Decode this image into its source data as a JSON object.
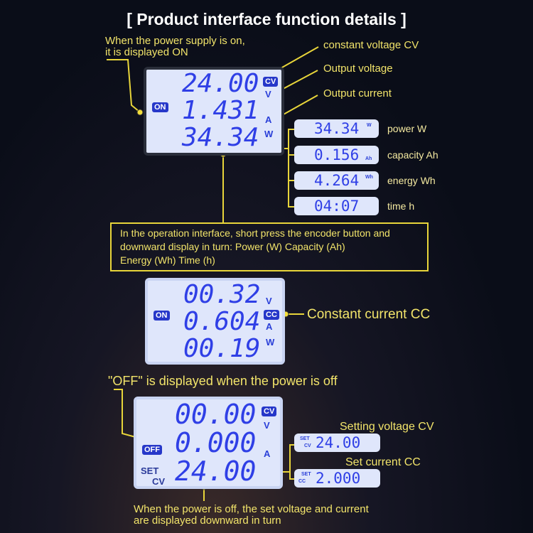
{
  "title": "[ Product interface function details ]",
  "on_note": [
    "When the power supply is on,",
    "it is displayed ON"
  ],
  "callouts": {
    "cv": "constant voltage CV",
    "voltage": "Output voltage",
    "current": "Output current"
  },
  "display_on": {
    "voltage": "24.00",
    "current": "1.431",
    "power": "34.34",
    "mode_badge": "CV",
    "state_badge": "ON",
    "units": [
      "V",
      "A",
      "W"
    ]
  },
  "sub_displays": [
    {
      "value": "34.34",
      "unit": "W",
      "label": "power  W"
    },
    {
      "value": "0.156",
      "unit": "Ah",
      "label": "capacity  Ah"
    },
    {
      "value": "4.264",
      "unit": "Wh",
      "label": "energy  Wh"
    },
    {
      "value": "04:07",
      "unit": "",
      "label": "time   h"
    }
  ],
  "info_box": [
    "In the operation interface, short press the encoder button and",
    "downward display in turn:   Power (W)   Capacity (Ah)",
    "Energy (Wh) Time (h)"
  ],
  "display_cc": {
    "voltage": "00.32",
    "current": "0.604",
    "power": "00.19",
    "mode_badge": "CC",
    "state_badge": "ON",
    "units": [
      "V",
      "A",
      "W"
    ],
    "callout": "Constant current CC"
  },
  "off_note": "\"OFF\" is displayed when the power is off",
  "display_off": {
    "voltage": "00.00",
    "current": "0.000",
    "set_value": "24.00",
    "mode_badge": "CV",
    "state_badge": "OFF",
    "set_label": [
      "SET",
      "CV"
    ],
    "units": [
      "V",
      "A"
    ]
  },
  "set_displays": [
    {
      "tag": [
        "SET",
        "CV"
      ],
      "value": "24.00",
      "label": "Setting voltage CV"
    },
    {
      "tag": [
        "SET",
        "CC"
      ],
      "value": "2.000",
      "label": "Set current CC"
    }
  ],
  "bottom_note": [
    "When the power is off, the set voltage and current",
    "are displayed downward in turn"
  ],
  "colors": {
    "accent_yellow": "#e8d53a",
    "lcd_bg": "#dfe6fb",
    "lcd_digit": "#2f3fe6",
    "background": "#0a0d18"
  }
}
